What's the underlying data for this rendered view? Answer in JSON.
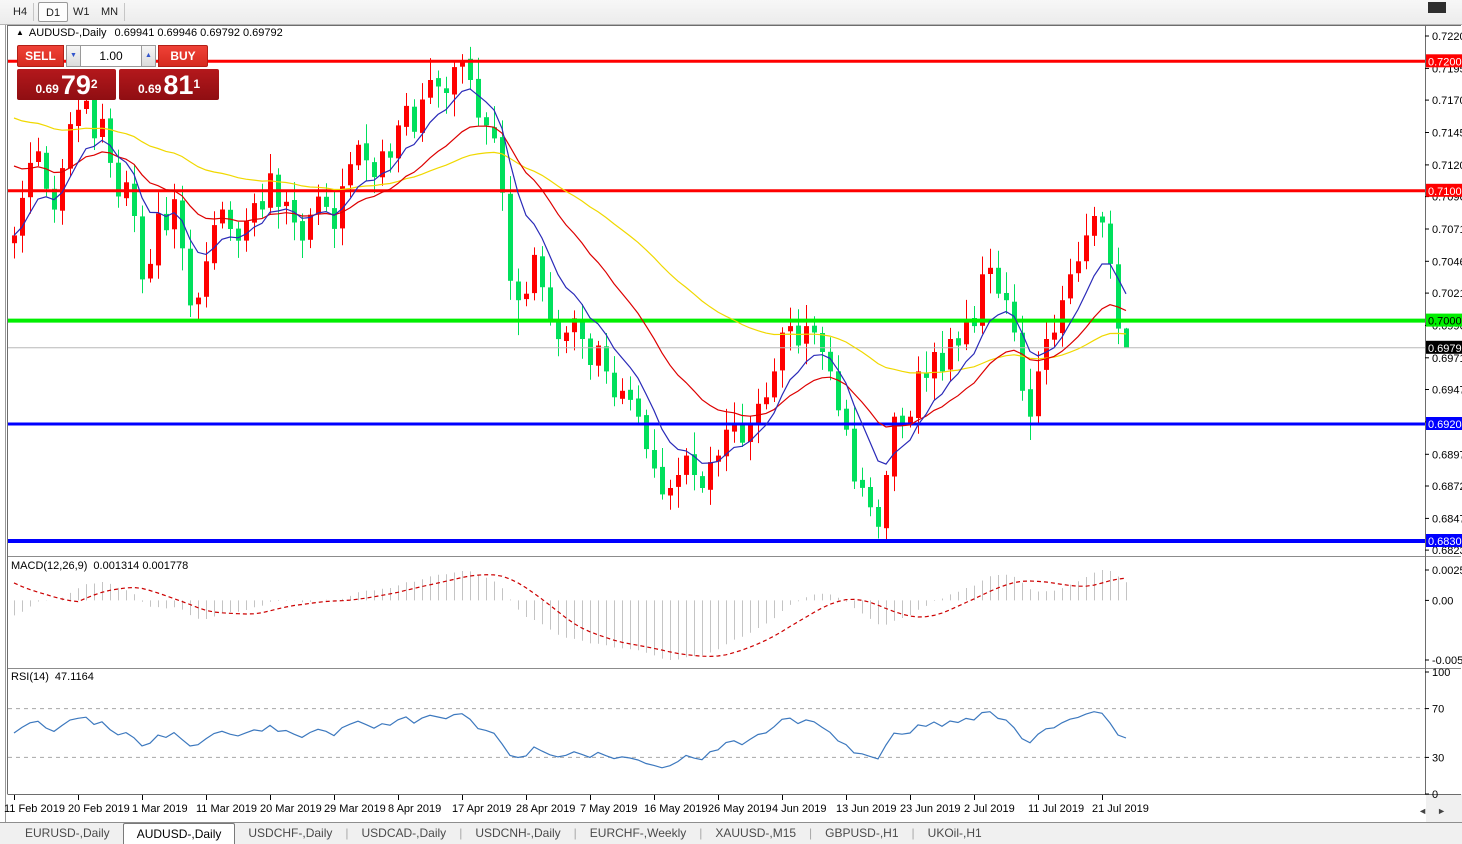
{
  "toolbar": {
    "timeframes": [
      {
        "label": "H4",
        "active": false
      },
      {
        "label": "D1",
        "active": true
      },
      {
        "label": "W1",
        "active": false
      },
      {
        "label": "MN",
        "active": false
      }
    ]
  },
  "chart": {
    "title": {
      "arrow": "▲",
      "symbol": "AUDUSD-,Daily",
      "quote": "0.69941 0.69946 0.69792 0.69792"
    },
    "trade_panel": {
      "sell_label": "SELL",
      "buy_label": "BUY",
      "volume": "1.00",
      "spin_down": "▼",
      "spin_up": "▲",
      "sell_small": "0.69",
      "sell_big": "79",
      "sell_sup": "2",
      "buy_small": "0.69",
      "buy_big": "81",
      "buy_sup": "1"
    }
  },
  "indicators": {
    "macd": {
      "title_text": "MACD(12,26,9)",
      "values_text": "0.001314 0.001778",
      "axis": [
        "0.002522",
        "0.00",
        "-0.005234"
      ]
    },
    "rsi": {
      "title_text": "RSI(14)",
      "value_text": "47.1164",
      "axis": [
        "100",
        "70",
        "30",
        "0"
      ],
      "levels": [
        70,
        30
      ]
    }
  },
  "chart_data": {
    "type": "candlestick",
    "symbol": "AUDUSD",
    "timeframe": "Daily",
    "bar_spacing_px": 8,
    "colors": {
      "up": "#ff0000",
      "down": "#00e05c",
      "ma_fast": "#2a2ab8",
      "ma_mid": "#dd0000",
      "ma_slow": "#f0d800",
      "hline_red": "#ff0000",
      "hline_green": "#00ef00",
      "hline_blue": "#0000ff",
      "current_line": "#b8b8b8",
      "macd_hist": "#c4c4c4",
      "macd_signal": "#cc0000",
      "rsi_line": "#3c78be",
      "rsi_level": "#a8a8a8"
    },
    "y_ticks": [
      "0.72200",
      "0.71950",
      "0.71705",
      "0.71455",
      "0.71205",
      "0.70960",
      "0.70710",
      "0.70460",
      "0.70215",
      "0.69965",
      "0.69715",
      "0.69470",
      "0.69220",
      "0.68970",
      "0.68725",
      "0.68475",
      "0.68230"
    ],
    "price_labels": [
      {
        "text": "0.72005",
        "price": 0.72005,
        "bg": "#ff0000",
        "fg": "#ffffff",
        "line": "red",
        "line_w": 3
      },
      {
        "text": "0.71005",
        "price": 0.71005,
        "bg": "#ff0000",
        "fg": "#ffffff",
        "line": "red",
        "line_w": 3
      },
      {
        "text": "0.70002",
        "price": 0.70002,
        "bg": "#00ef00",
        "fg": "#000000",
        "line": "green",
        "line_w": 4
      },
      {
        "text": "0.69792",
        "price": 0.69792,
        "bg": "#000000",
        "fg": "#ffffff",
        "line": "current",
        "line_w": 1
      },
      {
        "text": "0.69204",
        "price": 0.69204,
        "bg": "#0000ff",
        "fg": "#ffffff",
        "line": "blue",
        "line_w": 3
      },
      {
        "text": "0.68300",
        "price": 0.683,
        "bg": "#0000ff",
        "fg": "#ffffff",
        "line": "blue",
        "line_w": 4
      }
    ],
    "current_price": 0.69792,
    "x_labels": [
      "11 Feb 2019",
      "20 Feb 2019",
      "1 Mar 2019",
      "11 Mar 2019",
      "20 Mar 2019",
      "29 Mar 2019",
      "8 Apr 2019",
      "17 Apr 2019",
      "28 Apr 2019",
      "7 May 2019",
      "16 May 2019",
      "26 May 2019",
      "4 Jun 2019",
      "13 Jun 2019",
      "23 Jun 2019",
      "2 Jul 2019",
      "11 Jul 2019",
      "21 Jul 2019"
    ],
    "x_label_every_bars": 8,
    "closes": [
      0.7066,
      0.7095,
      0.7122,
      0.7131,
      0.7102,
      0.7086,
      0.7118,
      0.7152,
      0.7163,
      0.717,
      0.7141,
      0.7156,
      0.7122,
      0.7096,
      0.7107,
      0.7081,
      0.7032,
      0.7044,
      0.7083,
      0.707,
      0.7094,
      0.7056,
      0.7012,
      0.7018,
      0.7046,
      0.7074,
      0.7086,
      0.7071,
      0.7062,
      0.7077,
      0.7091,
      0.7086,
      0.7114,
      0.7088,
      0.7092,
      0.7076,
      0.7062,
      0.7082,
      0.7096,
      0.7088,
      0.7071,
      0.7104,
      0.7121,
      0.7136,
      0.7124,
      0.7111,
      0.7131,
      0.7126,
      0.7151,
      0.7166,
      0.7146,
      0.7171,
      0.7186,
      0.7181,
      0.7176,
      0.7196,
      0.7201,
      0.7186,
      0.7157,
      0.7151,
      0.7141,
      0.7099,
      0.7031,
      0.7016,
      0.7021,
      0.7051,
      0.7026,
      0.7001,
      0.6986,
      0.6991,
      0.7002,
      0.6986,
      0.6966,
      0.6981,
      0.6961,
      0.6941,
      0.6946,
      0.6939,
      0.6926,
      0.6901,
      0.6886,
      0.6866,
      0.6871,
      0.6881,
      0.6896,
      0.6881,
      0.6871,
      0.6891,
      0.6896,
      0.6916,
      0.6921,
      0.6906,
      0.6921,
      0.6936,
      0.6941,
      0.6961,
      0.6991,
      0.6996,
      0.6981,
      0.6996,
      0.6991,
      0.6976,
      0.6961,
      0.6931,
      0.6916,
      0.6876,
      0.6871,
      0.6856,
      0.6841,
      0.6881,
      0.6926,
      0.6921,
      0.6926,
      0.6961,
      0.6956,
      0.6976,
      0.6961,
      0.6986,
      0.6981,
      0.7001,
      0.6996,
      0.7036,
      0.7041,
      0.7021,
      0.7016,
      0.6991,
      0.6946,
      0.6926,
      0.6961,
      0.6986,
      0.6991,
      0.7016,
      0.7036,
      0.7046,
      0.7066,
      0.7081,
      0.7076,
      0.7044,
      0.6994,
      0.69792
    ],
    "last_bar_ohlc": [
      0.69941,
      0.69946,
      0.69792,
      0.69792
    ],
    "wick_overrides": {
      "high": {
        "9": 0.719,
        "56": 0.7206,
        "135": 0.7088
      },
      "low": {
        "22": 0.7003,
        "63": 0.6989,
        "81": 0.6862,
        "108": 0.6832,
        "127": 0.6908
      }
    },
    "ma_periods": {
      "fast": 8,
      "mid": 21,
      "slow": 55
    }
  },
  "tabs": [
    {
      "label": "EURUSD-,Daily",
      "active": false
    },
    {
      "label": "AUDUSD-,Daily",
      "active": true
    },
    {
      "label": "USDCHF-,Daily",
      "active": false
    },
    {
      "label": "USDCAD-,Daily",
      "active": false
    },
    {
      "label": "USDCNH-,Daily",
      "active": false
    },
    {
      "label": "EURCHF-,Weekly",
      "active": false
    },
    {
      "label": "XAUUSD-,M15",
      "active": false
    },
    {
      "label": "GBPUSD-,H1",
      "active": false
    },
    {
      "label": "UKOil-,H1",
      "active": false
    }
  ],
  "scrollbar": {
    "left": "◄",
    "right": "►"
  }
}
